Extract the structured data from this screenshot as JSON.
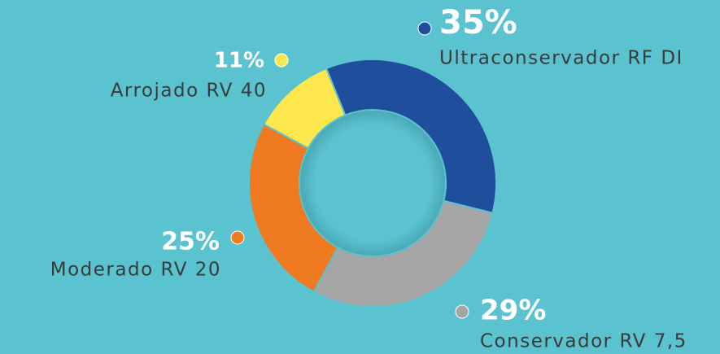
{
  "chart_data": {
    "type": "donut",
    "categories": [
      "Ultraconservador RF DI",
      "Conservador RV 7,5",
      "Moderado RV 20",
      "Arrojado RV 40"
    ],
    "values": [
      35,
      29,
      25,
      11
    ],
    "value_labels": [
      "35%",
      "29%",
      "25%",
      "11%"
    ],
    "colors": [
      "#1f4e9c",
      "#a5a5a5",
      "#ef7a22",
      "#fde74c"
    ]
  }
}
